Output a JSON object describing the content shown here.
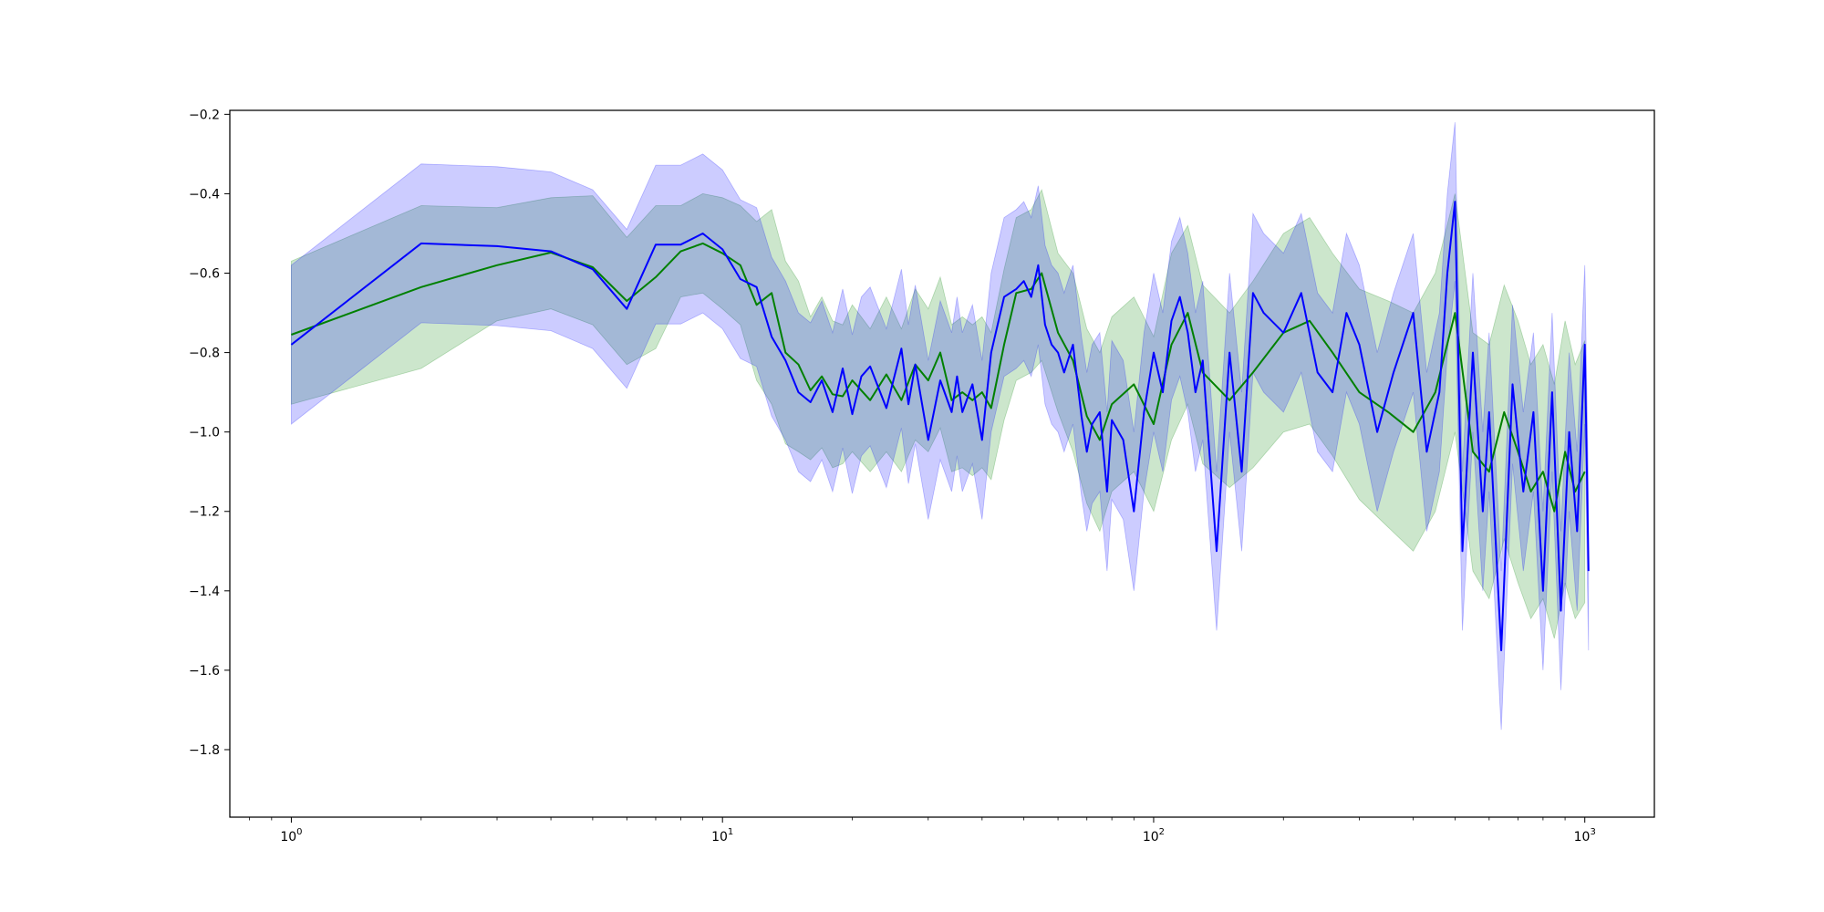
{
  "chart_data": {
    "type": "line",
    "title": "",
    "xlabel": "",
    "ylabel": "",
    "xscale": "log",
    "xlim": [
      0.72,
      1450
    ],
    "ylim": [
      -1.97,
      -0.19
    ],
    "grid": false,
    "x_ticks": [
      {
        "value": 1,
        "base": "10",
        "exp": "0"
      },
      {
        "value": 10,
        "base": "10",
        "exp": "1"
      },
      {
        "value": 100,
        "base": "10",
        "exp": "2"
      },
      {
        "value": 1000,
        "base": "10",
        "exp": "3"
      }
    ],
    "y_ticks": [
      {
        "value": -0.2,
        "label": "−0.2"
      },
      {
        "value": -0.4,
        "label": "−0.4"
      },
      {
        "value": -0.6,
        "label": "−0.6"
      },
      {
        "value": -0.8,
        "label": "−0.8"
      },
      {
        "value": -1.0,
        "label": "−1.0"
      },
      {
        "value": -1.2,
        "label": "−1.2"
      },
      {
        "value": -1.4,
        "label": "−1.4"
      },
      {
        "value": -1.6,
        "label": "−1.6"
      },
      {
        "value": -1.8,
        "label": "−1.8"
      }
    ],
    "series": [
      {
        "color": "#008000",
        "band_color": "#008000",
        "band_opacity": 0.2,
        "x": [
          1,
          2,
          3,
          4,
          5,
          6,
          7,
          8,
          9,
          10,
          11,
          12,
          13,
          14,
          15,
          16,
          17,
          18,
          19,
          20,
          22,
          24,
          26,
          28,
          30,
          32,
          34,
          36,
          38,
          40,
          42,
          45,
          48,
          52,
          55,
          60,
          65,
          70,
          75,
          80,
          90,
          100,
          110,
          120,
          130,
          150,
          170,
          200,
          230,
          260,
          300,
          350,
          400,
          450,
          500,
          550,
          600,
          650,
          700,
          750,
          800,
          850,
          900,
          950,
          1000
        ],
        "y": [
          -0.755,
          -0.635,
          -0.58,
          -0.548,
          -0.585,
          -0.67,
          -0.61,
          -0.545,
          -0.525,
          -0.55,
          -0.58,
          -0.68,
          -0.65,
          -0.8,
          -0.83,
          -0.895,
          -0.86,
          -0.905,
          -0.91,
          -0.87,
          -0.92,
          -0.855,
          -0.92,
          -0.83,
          -0.87,
          -0.8,
          -0.92,
          -0.9,
          -0.92,
          -0.9,
          -0.94,
          -0.78,
          -0.65,
          -0.64,
          -0.6,
          -0.75,
          -0.82,
          -0.96,
          -1.02,
          -0.93,
          -0.88,
          -0.98,
          -0.78,
          -0.7,
          -0.85,
          -0.92,
          -0.85,
          -0.75,
          -0.72,
          -0.8,
          -0.9,
          -0.95,
          -1.0,
          -0.9,
          -0.7,
          -1.05,
          -1.1,
          -0.95,
          -1.05,
          -1.15,
          -1.1,
          -1.2,
          -1.05,
          -1.15,
          -1.1
        ],
        "lower": [
          -0.93,
          -0.84,
          -0.72,
          -0.69,
          -0.73,
          -0.83,
          -0.79,
          -0.66,
          -0.65,
          -0.69,
          -0.73,
          -0.87,
          -0.93,
          -1.03,
          -1.05,
          -1.07,
          -1.04,
          -1.09,
          -1.08,
          -1.05,
          -1.1,
          -1.05,
          -1.1,
          -1.02,
          -1.05,
          -0.99,
          -1.1,
          -1.09,
          -1.11,
          -1.09,
          -1.12,
          -0.97,
          -0.87,
          -0.85,
          -0.82,
          -0.95,
          -1.05,
          -1.18,
          -1.25,
          -1.15,
          -1.1,
          -1.2,
          -1.02,
          -0.93,
          -1.08,
          -1.14,
          -1.09,
          -1.0,
          -0.98,
          -1.06,
          -1.17,
          -1.24,
          -1.3,
          -1.2,
          -1.0,
          -1.35,
          -1.42,
          -1.27,
          -1.38,
          -1.47,
          -1.42,
          -1.52,
          -1.38,
          -1.47,
          -1.43
        ],
        "upper": [
          -0.57,
          -0.43,
          -0.435,
          -0.41,
          -0.405,
          -0.51,
          -0.43,
          -0.43,
          -0.4,
          -0.41,
          -0.43,
          -0.47,
          -0.44,
          -0.57,
          -0.62,
          -0.71,
          -0.66,
          -0.72,
          -0.73,
          -0.68,
          -0.74,
          -0.66,
          -0.74,
          -0.64,
          -0.69,
          -0.61,
          -0.73,
          -0.71,
          -0.73,
          -0.71,
          -0.75,
          -0.59,
          -0.46,
          -0.44,
          -0.39,
          -0.55,
          -0.6,
          -0.74,
          -0.8,
          -0.71,
          -0.66,
          -0.76,
          -0.55,
          -0.48,
          -0.63,
          -0.7,
          -0.62,
          -0.5,
          -0.46,
          -0.55,
          -0.64,
          -0.67,
          -0.7,
          -0.6,
          -0.4,
          -0.75,
          -0.78,
          -0.63,
          -0.72,
          -0.83,
          -0.78,
          -0.88,
          -0.72,
          -0.83,
          -0.77
        ]
      },
      {
        "color": "#0000ff",
        "band_color": "#0000ff",
        "band_opacity": 0.2,
        "x": [
          1,
          2,
          3,
          4,
          5,
          6,
          7,
          8,
          9,
          10,
          11,
          12,
          13,
          14,
          15,
          16,
          17,
          18,
          19,
          20,
          21,
          22,
          24,
          26,
          27,
          28,
          30,
          32,
          34,
          35,
          36,
          38,
          40,
          42,
          45,
          48,
          50,
          52,
          54,
          56,
          58,
          60,
          62,
          65,
          68,
          70,
          72,
          75,
          78,
          80,
          85,
          90,
          95,
          100,
          105,
          110,
          115,
          120,
          125,
          130,
          140,
          150,
          160,
          170,
          180,
          200,
          220,
          240,
          260,
          280,
          300,
          330,
          360,
          400,
          430,
          460,
          480,
          500,
          520,
          550,
          580,
          600,
          640,
          680,
          720,
          760,
          800,
          840,
          880,
          920,
          960,
          1000,
          1020
        ],
        "y": [
          -0.78,
          -0.525,
          -0.532,
          -0.545,
          -0.59,
          -0.69,
          -0.528,
          -0.528,
          -0.5,
          -0.54,
          -0.615,
          -0.635,
          -0.76,
          -0.82,
          -0.9,
          -0.925,
          -0.87,
          -0.95,
          -0.84,
          -0.955,
          -0.86,
          -0.835,
          -0.94,
          -0.79,
          -0.93,
          -0.83,
          -1.02,
          -0.87,
          -0.95,
          -0.86,
          -0.95,
          -0.88,
          -1.02,
          -0.8,
          -0.66,
          -0.64,
          -0.62,
          -0.66,
          -0.58,
          -0.73,
          -0.78,
          -0.8,
          -0.85,
          -0.78,
          -0.96,
          -1.05,
          -0.98,
          -0.95,
          -1.15,
          -0.97,
          -1.02,
          -1.2,
          -0.95,
          -0.8,
          -0.9,
          -0.72,
          -0.66,
          -0.75,
          -0.9,
          -0.82,
          -1.3,
          -0.8,
          -1.1,
          -0.65,
          -0.7,
          -0.75,
          -0.65,
          -0.85,
          -0.9,
          -0.7,
          -0.78,
          -1.0,
          -0.85,
          -0.7,
          -1.05,
          -0.9,
          -0.6,
          -0.42,
          -1.3,
          -0.8,
          -1.2,
          -0.95,
          -1.55,
          -0.88,
          -1.15,
          -0.95,
          -1.4,
          -0.9,
          -1.45,
          -1.0,
          -1.25,
          -0.78,
          -1.35
        ]
      }
    ]
  }
}
